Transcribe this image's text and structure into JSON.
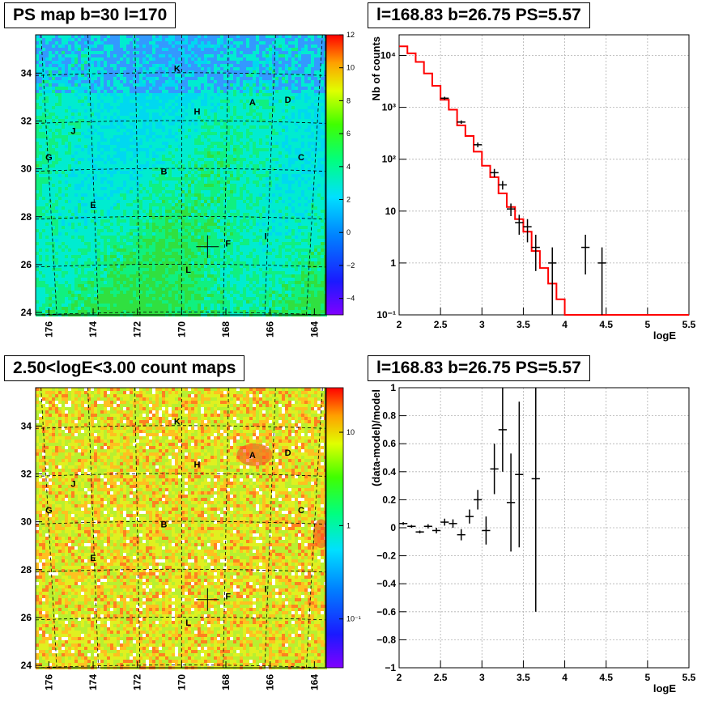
{
  "panels": {
    "top_left_title": "PS map b=30 l=170",
    "top_right_title": "l=168.83 b=26.75 PS=5.57",
    "bottom_left_title": "2.50<logE<3.00 count maps",
    "bottom_right_title": "l=168.83 b=26.75 PS=5.57"
  },
  "colors": {
    "model_line": "#ff0000",
    "data_points": "#000000",
    "grid": "#b0b0b0"
  },
  "chart_data": [
    {
      "type": "heatmap",
      "name": "ps_map",
      "title": "PS map b=30 l=170",
      "x_ticks": [
        "176",
        "174",
        "172",
        "170",
        "168",
        "166",
        "164"
      ],
      "x_range": [
        176.6,
        163.5
      ],
      "y_ticks": [
        "24",
        "26",
        "28",
        "30",
        "32",
        "34"
      ],
      "y_range": [
        23.9,
        35.6
      ],
      "colorbar_ticks": [
        "12",
        "10",
        "8",
        "6",
        "4",
        "2",
        "0",
        "−2",
        "−4"
      ],
      "colorbar_range": [
        -5,
        12
      ],
      "source_labels": [
        {
          "t": "K",
          "l": 170.2,
          "b": 34.2
        },
        {
          "t": "H",
          "l": 169.3,
          "b": 32.4
        },
        {
          "t": "A",
          "l": 166.8,
          "b": 32.8
        },
        {
          "t": "D",
          "l": 165.2,
          "b": 32.9
        },
        {
          "t": "J",
          "l": 174.9,
          "b": 31.6
        },
        {
          "t": "G",
          "l": 176.0,
          "b": 30.5
        },
        {
          "t": "C",
          "l": 164.6,
          "b": 30.5
        },
        {
          "t": "B",
          "l": 170.8,
          "b": 29.9
        },
        {
          "t": "E",
          "l": 174.0,
          "b": 28.5
        },
        {
          "t": "F",
          "l": 167.9,
          "b": 26.9
        },
        {
          "t": "I",
          "l": 166.2,
          "b": 27.2
        },
        {
          "t": "L",
          "l": 169.7,
          "b": 25.8
        }
      ],
      "marker": {
        "l": 168.83,
        "b": 26.75
      }
    },
    {
      "type": "line",
      "name": "spectrum",
      "title": "l=168.83 b=26.75 PS=5.57",
      "xlabel": "logE",
      "ylabel": "Nb of counts",
      "log_y": true,
      "xlim": [
        2,
        5.5
      ],
      "ylim": [
        0.1,
        25000
      ],
      "x_ticks": [
        "2",
        "2.5",
        "3",
        "3.5",
        "4",
        "4.5",
        "5",
        "5.5"
      ],
      "y_ticks": [
        {
          "v": 0.1,
          "t": "10⁻¹"
        },
        {
          "v": 1,
          "t": "1"
        },
        {
          "v": 10,
          "t": "10"
        },
        {
          "v": 100,
          "t": "10²"
        },
        {
          "v": 1000,
          "t": "10³"
        },
        {
          "v": 10000,
          "t": "10⁴"
        }
      ],
      "model_edges": [
        2,
        2.1,
        2.2,
        2.3,
        2.4,
        2.5,
        2.6,
        2.7,
        2.8,
        2.9,
        3.0,
        3.1,
        3.2,
        3.3,
        3.4,
        3.5,
        3.6,
        3.7,
        3.8,
        3.9,
        4.0,
        5.5
      ],
      "model_values": [
        15000,
        11000,
        7500,
        4500,
        2600,
        1400,
        900,
        450,
        280,
        140,
        75,
        45,
        22,
        12,
        7,
        4,
        1.7,
        0.8,
        0.4,
        0.2,
        0.1
      ],
      "data": [
        {
          "x": 2.55,
          "y": 1500,
          "ylo": 1400,
          "yhi": 1600
        },
        {
          "x": 2.75,
          "y": 520,
          "ylo": 480,
          "yhi": 560
        },
        {
          "x": 2.95,
          "y": 190,
          "ylo": 170,
          "yhi": 210
        },
        {
          "x": 3.15,
          "y": 55,
          "ylo": 45,
          "yhi": 65
        },
        {
          "x": 3.25,
          "y": 32,
          "ylo": 26,
          "yhi": 38
        },
        {
          "x": 3.35,
          "y": 11,
          "ylo": 8,
          "yhi": 14
        },
        {
          "x": 3.45,
          "y": 6,
          "ylo": 3.5,
          "yhi": 8.5
        },
        {
          "x": 3.55,
          "y": 5,
          "ylo": 2.5,
          "yhi": 7
        },
        {
          "x": 3.65,
          "y": 2,
          "ylo": 0.7,
          "yhi": 3.5
        },
        {
          "x": 3.85,
          "y": 1,
          "ylo": 0.1,
          "yhi": 2
        },
        {
          "x": 4.25,
          "y": 2,
          "ylo": 0.6,
          "yhi": 3.5
        },
        {
          "x": 4.45,
          "y": 1,
          "ylo": 0.1,
          "yhi": 2
        }
      ]
    },
    {
      "type": "heatmap",
      "name": "count_map",
      "title": "2.50<logE<3.00 count maps",
      "x_ticks": [
        "176",
        "174",
        "172",
        "170",
        "168",
        "166",
        "164"
      ],
      "x_range": [
        176.6,
        163.5
      ],
      "y_ticks": [
        "24",
        "26",
        "28",
        "30",
        "32",
        "34"
      ],
      "y_range": [
        23.9,
        35.6
      ],
      "colorbar_ticks": [
        {
          "v": 10,
          "t": "10"
        },
        {
          "v": 1,
          "t": "1"
        },
        {
          "v": 0.1,
          "t": "10⁻¹"
        }
      ],
      "colorbar_log_range": [
        0.03,
        30
      ],
      "source_labels": [
        {
          "t": "K",
          "l": 170.2,
          "b": 34.2
        },
        {
          "t": "H",
          "l": 169.3,
          "b": 32.4
        },
        {
          "t": "A",
          "l": 166.8,
          "b": 32.8
        },
        {
          "t": "D",
          "l": 165.2,
          "b": 32.9
        },
        {
          "t": "J",
          "l": 174.9,
          "b": 31.6
        },
        {
          "t": "G",
          "l": 176.0,
          "b": 30.5
        },
        {
          "t": "C",
          "l": 164.6,
          "b": 30.5
        },
        {
          "t": "B",
          "l": 170.8,
          "b": 29.9
        },
        {
          "t": "E",
          "l": 174.0,
          "b": 28.5
        },
        {
          "t": "F",
          "l": 167.9,
          "b": 26.9
        },
        {
          "t": "I",
          "l": 166.2,
          "b": 27.2
        },
        {
          "t": "L",
          "l": 169.7,
          "b": 25.8
        }
      ],
      "marker": {
        "l": 168.83,
        "b": 26.75
      }
    },
    {
      "type": "scatter",
      "name": "residuals",
      "title": "l=168.83 b=26.75 PS=5.57",
      "xlabel": "logE",
      "ylabel": "(data-model)/model",
      "xlim": [
        2,
        5.5
      ],
      "ylim": [
        -1,
        1
      ],
      "x_ticks": [
        "2",
        "2.5",
        "3",
        "3.5",
        "4",
        "4.5",
        "5",
        "5.5"
      ],
      "y_ticks": [
        "−1",
        "−0.8",
        "−0.6",
        "−0.4",
        "−0.2",
        "0",
        "0.2",
        "0.4",
        "0.6",
        "0.8",
        "1"
      ],
      "data": [
        {
          "x": 2.05,
          "y": 0.03,
          "e": 0.01
        },
        {
          "x": 2.15,
          "y": 0.01,
          "e": 0.01
        },
        {
          "x": 2.25,
          "y": -0.03,
          "e": 0.01
        },
        {
          "x": 2.35,
          "y": 0.01,
          "e": 0.015
        },
        {
          "x": 2.45,
          "y": -0.02,
          "e": 0.02
        },
        {
          "x": 2.55,
          "y": 0.04,
          "e": 0.025
        },
        {
          "x": 2.65,
          "y": 0.03,
          "e": 0.03
        },
        {
          "x": 2.75,
          "y": -0.05,
          "e": 0.04
        },
        {
          "x": 2.85,
          "y": 0.08,
          "e": 0.05
        },
        {
          "x": 2.95,
          "y": 0.2,
          "e": 0.07
        },
        {
          "x": 3.05,
          "y": -0.02,
          "e": 0.1
        },
        {
          "x": 3.15,
          "y": 0.42,
          "e": 0.18
        },
        {
          "x": 3.25,
          "y": 0.7,
          "e": 0.3
        },
        {
          "x": 3.35,
          "y": 0.18,
          "e": 0.35
        },
        {
          "x": 3.45,
          "y": 0.38,
          "e": 0.52
        },
        {
          "x": 3.65,
          "y": 0.35,
          "e": 0.95
        }
      ]
    }
  ]
}
